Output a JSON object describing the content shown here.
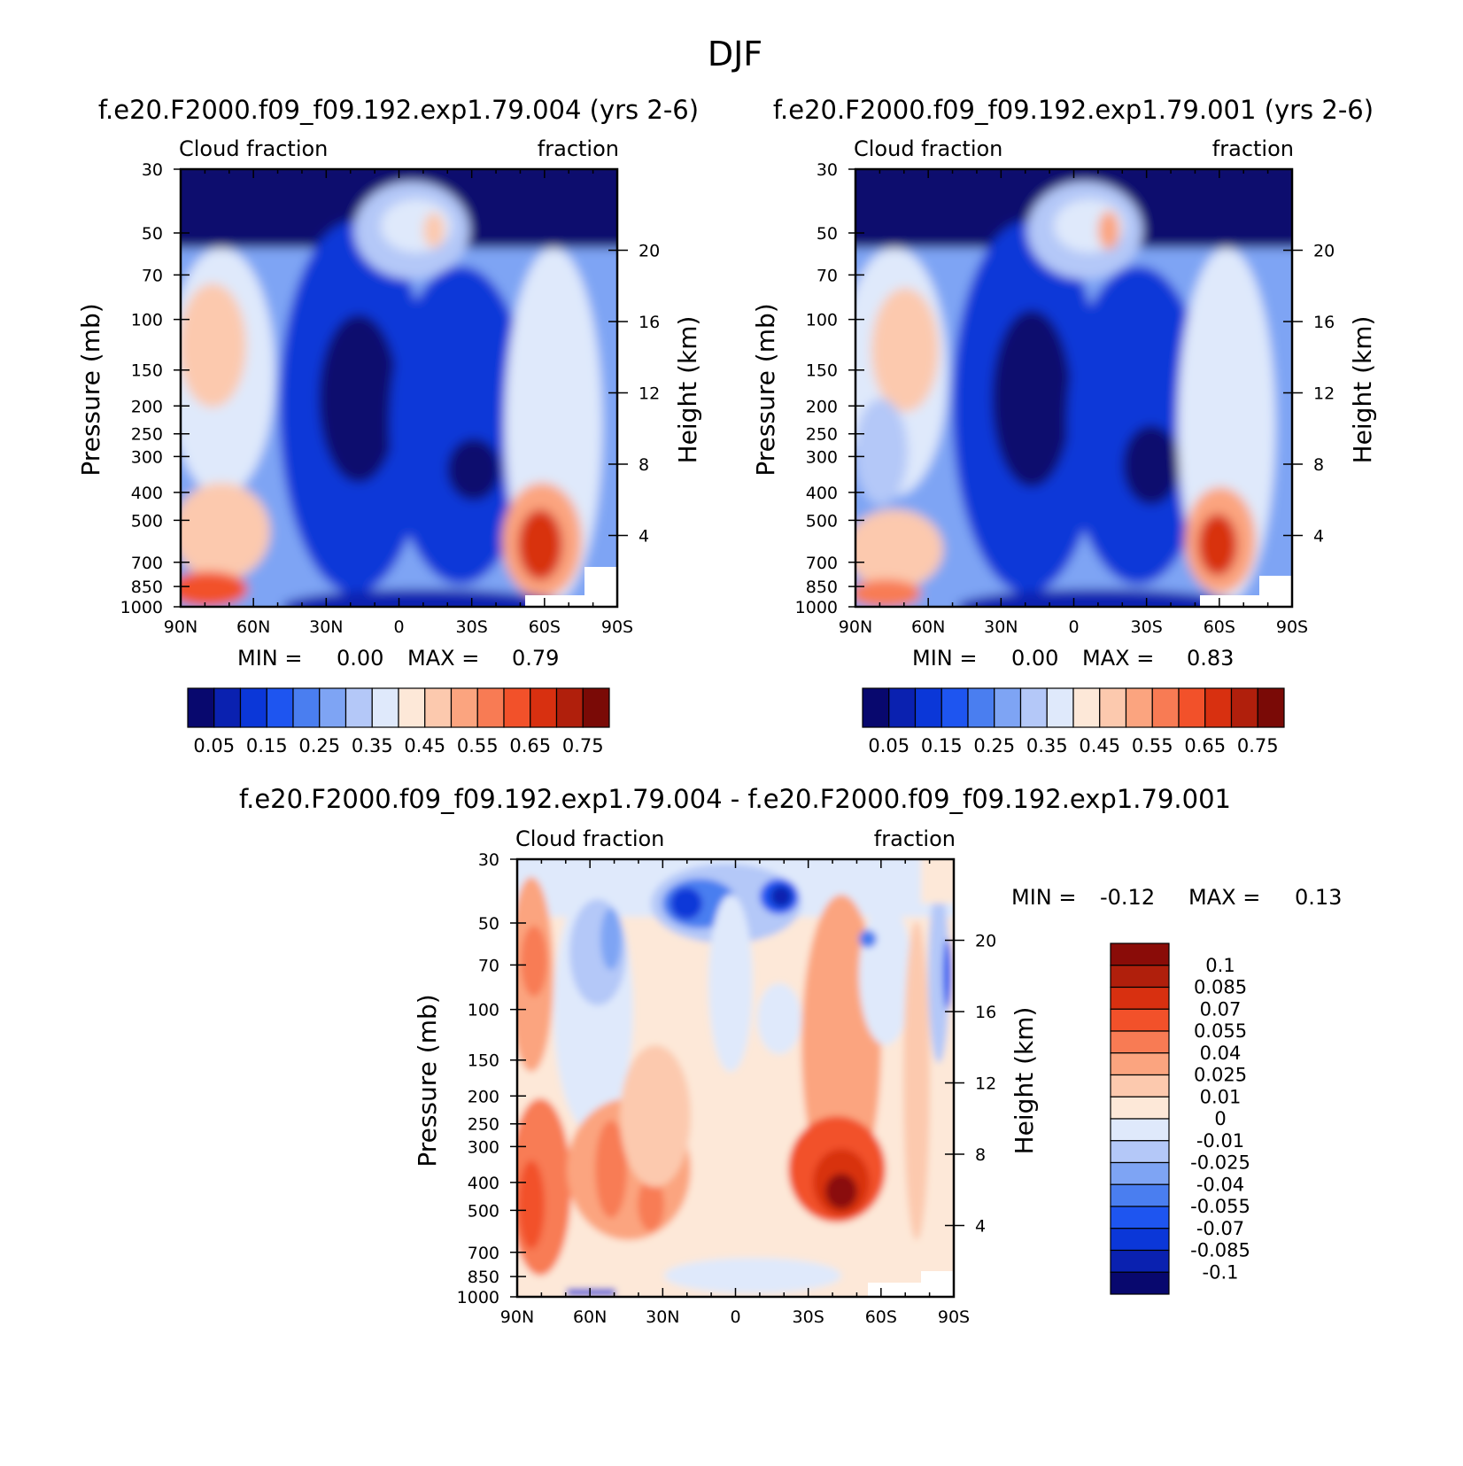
{
  "figure": {
    "title": "DJF"
  },
  "colors": {
    "abs_scale": [
      "#08086e",
      "#0a21b0",
      "#0b37d8",
      "#1e55f0",
      "#4a7ef0",
      "#7ea4f4",
      "#b4c8f8",
      "#dfe9fb",
      "#fde8d8",
      "#fcc9ae",
      "#fba47f",
      "#f87b54",
      "#f2512a",
      "#d83010",
      "#b01f0c",
      "#7a0a06"
    ],
    "diff_scale": [
      "#08086e",
      "#0a21b0",
      "#0b37d8",
      "#1e55f0",
      "#4a7ef0",
      "#7ea4f4",
      "#b4c8f8",
      "#dfe9fb",
      "#fde8d8",
      "#fcc9ae",
      "#fba47f",
      "#f87b54",
      "#f2512a",
      "#d83010",
      "#b01f0c",
      "#8a0c08"
    ]
  },
  "chart_data": [
    {
      "type": "heatmap",
      "panel_title": "f.e20.F2000.f09_f09.192.exp1.79.004 (yrs 2-6)",
      "left_string": "Cloud fraction",
      "right_string": "fraction",
      "ylabel": "Pressure (mb)",
      "ylabel_right": "Height (km)",
      "x_ticks": [
        "90N",
        "60N",
        "30N",
        "0",
        "30S",
        "60S",
        "90S"
      ],
      "x_values": [
        90,
        60,
        30,
        0,
        -30,
        -60,
        -90
      ],
      "y_ticks": [
        30,
        50,
        70,
        100,
        150,
        200,
        250,
        300,
        400,
        500,
        700,
        850,
        1000
      ],
      "y_tick_labels": [
        "30",
        "50",
        "70",
        "100",
        "150",
        "200",
        "250",
        "300",
        "400",
        "500",
        "700",
        "850",
        "1000"
      ],
      "y_log": true,
      "ylim": [
        1000,
        30
      ],
      "height_ticks_km": [
        20,
        16,
        12,
        8,
        4
      ],
      "min_label": "MIN =",
      "min_value": "0.00",
      "max_label": "MAX =",
      "max_value": "0.79",
      "colorbar_labels": [
        "0.05",
        "0.15",
        "0.25",
        "0.35",
        "0.45",
        "0.55",
        "0.65",
        "0.75"
      ],
      "levels": [
        0.05,
        0.1,
        0.15,
        0.2,
        0.25,
        0.3,
        0.35,
        0.4,
        0.45,
        0.5,
        0.55,
        0.6,
        0.65,
        0.7,
        0.75
      ]
    },
    {
      "type": "heatmap",
      "panel_title": "f.e20.F2000.f09_f09.192.exp1.79.001 (yrs 2-6)",
      "left_string": "Cloud fraction",
      "right_string": "fraction",
      "ylabel": "Pressure (mb)",
      "ylabel_right": "Height (km)",
      "x_ticks": [
        "90N",
        "60N",
        "30N",
        "0",
        "30S",
        "60S",
        "90S"
      ],
      "x_values": [
        90,
        60,
        30,
        0,
        -30,
        -60,
        -90
      ],
      "y_ticks": [
        30,
        50,
        70,
        100,
        150,
        200,
        250,
        300,
        400,
        500,
        700,
        850,
        1000
      ],
      "y_tick_labels": [
        "30",
        "50",
        "70",
        "100",
        "150",
        "200",
        "250",
        "300",
        "400",
        "500",
        "700",
        "850",
        "1000"
      ],
      "y_log": true,
      "ylim": [
        1000,
        30
      ],
      "height_ticks_km": [
        20,
        16,
        12,
        8,
        4
      ],
      "min_label": "MIN =",
      "min_value": "0.00",
      "max_label": "MAX =",
      "max_value": "0.83",
      "colorbar_labels": [
        "0.05",
        "0.15",
        "0.25",
        "0.35",
        "0.45",
        "0.55",
        "0.65",
        "0.75"
      ],
      "levels": [
        0.05,
        0.1,
        0.15,
        0.2,
        0.25,
        0.3,
        0.35,
        0.4,
        0.45,
        0.5,
        0.55,
        0.6,
        0.65,
        0.7,
        0.75
      ]
    },
    {
      "type": "heatmap",
      "panel_title": "f.e20.F2000.f09_f09.192.exp1.79.004 - f.e20.F2000.f09_f09.192.exp1.79.001",
      "left_string": "Cloud fraction",
      "right_string": "fraction",
      "ylabel": "Pressure (mb)",
      "ylabel_right": "Height (km)",
      "x_ticks": [
        "90N",
        "60N",
        "30N",
        "0",
        "30S",
        "60S",
        "90S"
      ],
      "x_values": [
        90,
        60,
        30,
        0,
        -30,
        -60,
        -90
      ],
      "y_ticks": [
        30,
        50,
        70,
        100,
        150,
        200,
        250,
        300,
        400,
        500,
        700,
        850,
        1000
      ],
      "y_tick_labels": [
        "30",
        "50",
        "70",
        "100",
        "150",
        "200",
        "250",
        "300",
        "400",
        "500",
        "700",
        "850",
        "1000"
      ],
      "y_log": true,
      "ylim": [
        1000,
        30
      ],
      "height_ticks_km": [
        20,
        16,
        12,
        8,
        4
      ],
      "min_label": "MIN =",
      "min_value": "-0.12",
      "max_label": "MAX =",
      "max_value": "0.13",
      "colorbar_labels": [
        "0.1",
        "0.085",
        "0.07",
        "0.055",
        "0.04",
        "0.025",
        "0.01",
        "0",
        "-0.01",
        "-0.025",
        "-0.04",
        "-0.055",
        "-0.07",
        "-0.085",
        "-0.1"
      ],
      "levels": [
        -0.1,
        -0.085,
        -0.07,
        -0.055,
        -0.04,
        -0.025,
        -0.01,
        0,
        0.01,
        0.025,
        0.04,
        0.055,
        0.07,
        0.085,
        0.1
      ]
    }
  ]
}
